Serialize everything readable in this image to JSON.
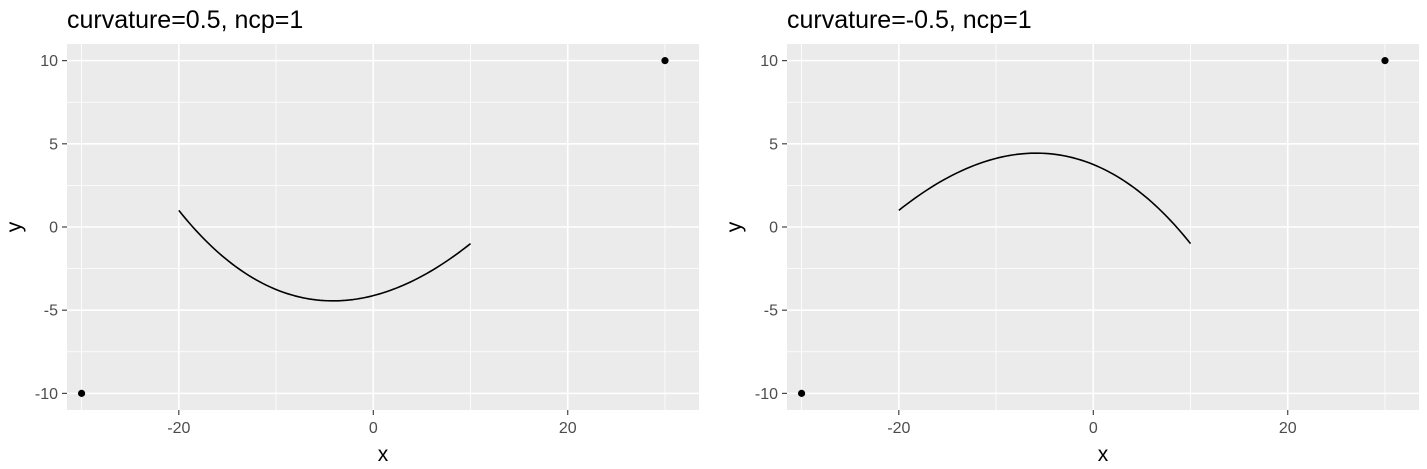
{
  "chart_data": [
    {
      "type": "line",
      "title": "curvature=0.5, ncp=1",
      "xlabel": "x",
      "ylabel": "y",
      "xlim": [
        -31.5,
        33.5
      ],
      "ylim": [
        -11,
        11
      ],
      "x_ticks": [
        -20,
        0,
        20
      ],
      "x_tick_labels": [
        "-20",
        "0",
        "20"
      ],
      "y_ticks": [
        10,
        5,
        0,
        -5,
        -10
      ],
      "y_tick_labels": [
        "10",
        "5",
        "0",
        "-5",
        "-10"
      ],
      "grid": true,
      "points": [
        {
          "x": -30,
          "y": -10
        },
        {
          "x": 30,
          "y": 10
        }
      ],
      "curve": {
        "x": -20,
        "y": 1,
        "xend": 10,
        "yend": -1,
        "curvature": 0.5,
        "ncp": 1
      }
    },
    {
      "type": "line",
      "title": "curvature=-0.5, ncp=1",
      "xlabel": "x",
      "ylabel": "y",
      "xlim": [
        -31.5,
        33.5
      ],
      "ylim": [
        -11,
        11
      ],
      "x_ticks": [
        -20,
        0,
        20
      ],
      "x_tick_labels": [
        "-20",
        "0",
        "20"
      ],
      "y_ticks": [
        10,
        5,
        0,
        -5,
        -10
      ],
      "y_tick_labels": [
        "10",
        "5",
        "0",
        "-5",
        "-10"
      ],
      "grid": true,
      "points": [
        {
          "x": -30,
          "y": -10
        },
        {
          "x": 30,
          "y": 10
        }
      ],
      "curve": {
        "x": -20,
        "y": 1,
        "xend": 10,
        "yend": -1,
        "curvature": -0.5,
        "ncp": 1
      }
    }
  ]
}
